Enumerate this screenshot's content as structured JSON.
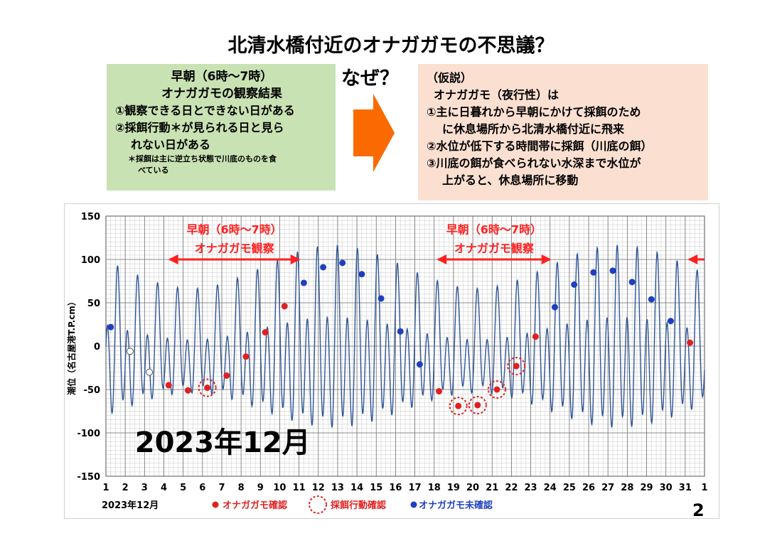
{
  "title": "北清水橋付近のオナガガモの不思議？",
  "left_box": {
    "heading1": "早朝（6時～7時）",
    "heading2": "オナガガモの観察結果",
    "item1": "①観察できる日とできない日がある",
    "item2_line1": "②採餌行動＊が見られる日と見ら",
    "item2_line2": "れない日がある",
    "note_line1": "＊採餌は主に逆立ち状態で川底のものを食",
    "note_line2": "べている"
  },
  "naze": "なぜ？",
  "right_box": {
    "line1": "（仮説）",
    "line2": "オナガガモ（夜行性）は",
    "line3": "①主に日暮れから早朝にかけて採餌のため",
    "line4": "に休息場所から北清水橋付近に飛来",
    "line5": "②水位が低下する時間帯に採餌（川底の餌）",
    "line6": "③川底の餌が食べられない水深まで水位が",
    "line7": "上がると、休息場所に移動"
  },
  "colors": {
    "tide_line": "#2f5597",
    "observed": "#e02020",
    "not_observed": "#1f3fbf",
    "annotation": "#ff2020",
    "arrow": "#fa6a00",
    "left_box_bg": "#c9e2b3",
    "right_box_bg": "#fbe0d2"
  },
  "page_number": "2",
  "chart_data": {
    "type": "line",
    "ylabel": "潮位（名古屋港T.P.cm）",
    "ylim": [
      -150,
      150
    ],
    "yticks": [
      -150,
      -100,
      -50,
      0,
      50,
      100,
      150
    ],
    "xlim": [
      1,
      32
    ],
    "xtick_labels": [
      "1",
      "2",
      "3",
      "4",
      "5",
      "6",
      "7",
      "8",
      "9",
      "10",
      "11",
      "12",
      "13",
      "14",
      "15",
      "16",
      "17",
      "18",
      "19",
      "20",
      "21",
      "22",
      "23",
      "24",
      "25",
      "26",
      "27",
      "28",
      "29",
      "30",
      "31",
      "1"
    ],
    "xlabel": "2023年12月",
    "big_label": "2023年12月",
    "grid": true,
    "series_name": "潮位",
    "tide_model": {
      "semidiurnal_hours": 12.42,
      "diurnal_hours": 24.84,
      "spring_neap_days": 14.77
    },
    "observation_periods": [
      {
        "label_line1": "早朝（6時～7時）",
        "label_line2": "オナガガモ観察",
        "x_start": 4.3,
        "x_end": 11.0
      },
      {
        "label_line1": "早朝（6時～7時）",
        "label_line2": "オナガガモ観察",
        "x_start": 18.2,
        "x_end": 24.0
      },
      {
        "label_line1": "",
        "label_line2": "",
        "x_start": 31.2,
        "x_end": 32.0
      }
    ],
    "observed_points": [
      {
        "x": 4.25,
        "y": -45
      },
      {
        "x": 5.25,
        "y": -51
      },
      {
        "x": 6.25,
        "y": -48
      },
      {
        "x": 7.25,
        "y": -34
      },
      {
        "x": 8.25,
        "y": -12
      },
      {
        "x": 9.25,
        "y": 16
      },
      {
        "x": 10.25,
        "y": 46
      },
      {
        "x": 18.25,
        "y": -52
      },
      {
        "x": 19.25,
        "y": -69
      },
      {
        "x": 20.25,
        "y": -68
      },
      {
        "x": 21.25,
        "y": -50
      },
      {
        "x": 22.25,
        "y": -23
      },
      {
        "x": 23.25,
        "y": 11
      },
      {
        "x": 31.25,
        "y": 4
      }
    ],
    "feeding_points": [
      {
        "x": 6.25,
        "y": -48
      },
      {
        "x": 19.25,
        "y": -69
      },
      {
        "x": 20.25,
        "y": -68
      },
      {
        "x": 21.25,
        "y": -50
      },
      {
        "x": 22.25,
        "y": -23
      }
    ],
    "not_observed_points": [
      {
        "x": 1.25,
        "y": 22
      },
      {
        "x": 11.25,
        "y": 73
      },
      {
        "x": 12.25,
        "y": 91
      },
      {
        "x": 13.25,
        "y": 96
      },
      {
        "x": 14.25,
        "y": 83
      },
      {
        "x": 15.25,
        "y": 55
      },
      {
        "x": 16.25,
        "y": 17
      },
      {
        "x": 17.25,
        "y": -21
      },
      {
        "x": 24.25,
        "y": 45
      },
      {
        "x": 25.25,
        "y": 71
      },
      {
        "x": 26.25,
        "y": 85
      },
      {
        "x": 27.25,
        "y": 87
      },
      {
        "x": 28.25,
        "y": 74
      },
      {
        "x": 29.25,
        "y": 54
      },
      {
        "x": 30.25,
        "y": 29
      }
    ],
    "open_points": [
      {
        "x": 2.25,
        "y": -6
      },
      {
        "x": 3.25,
        "y": -30
      }
    ],
    "legend": {
      "observed": "オナガガモ確認",
      "feeding": "採餌行動確認",
      "not_observed": "オナガガモ未確認"
    }
  }
}
